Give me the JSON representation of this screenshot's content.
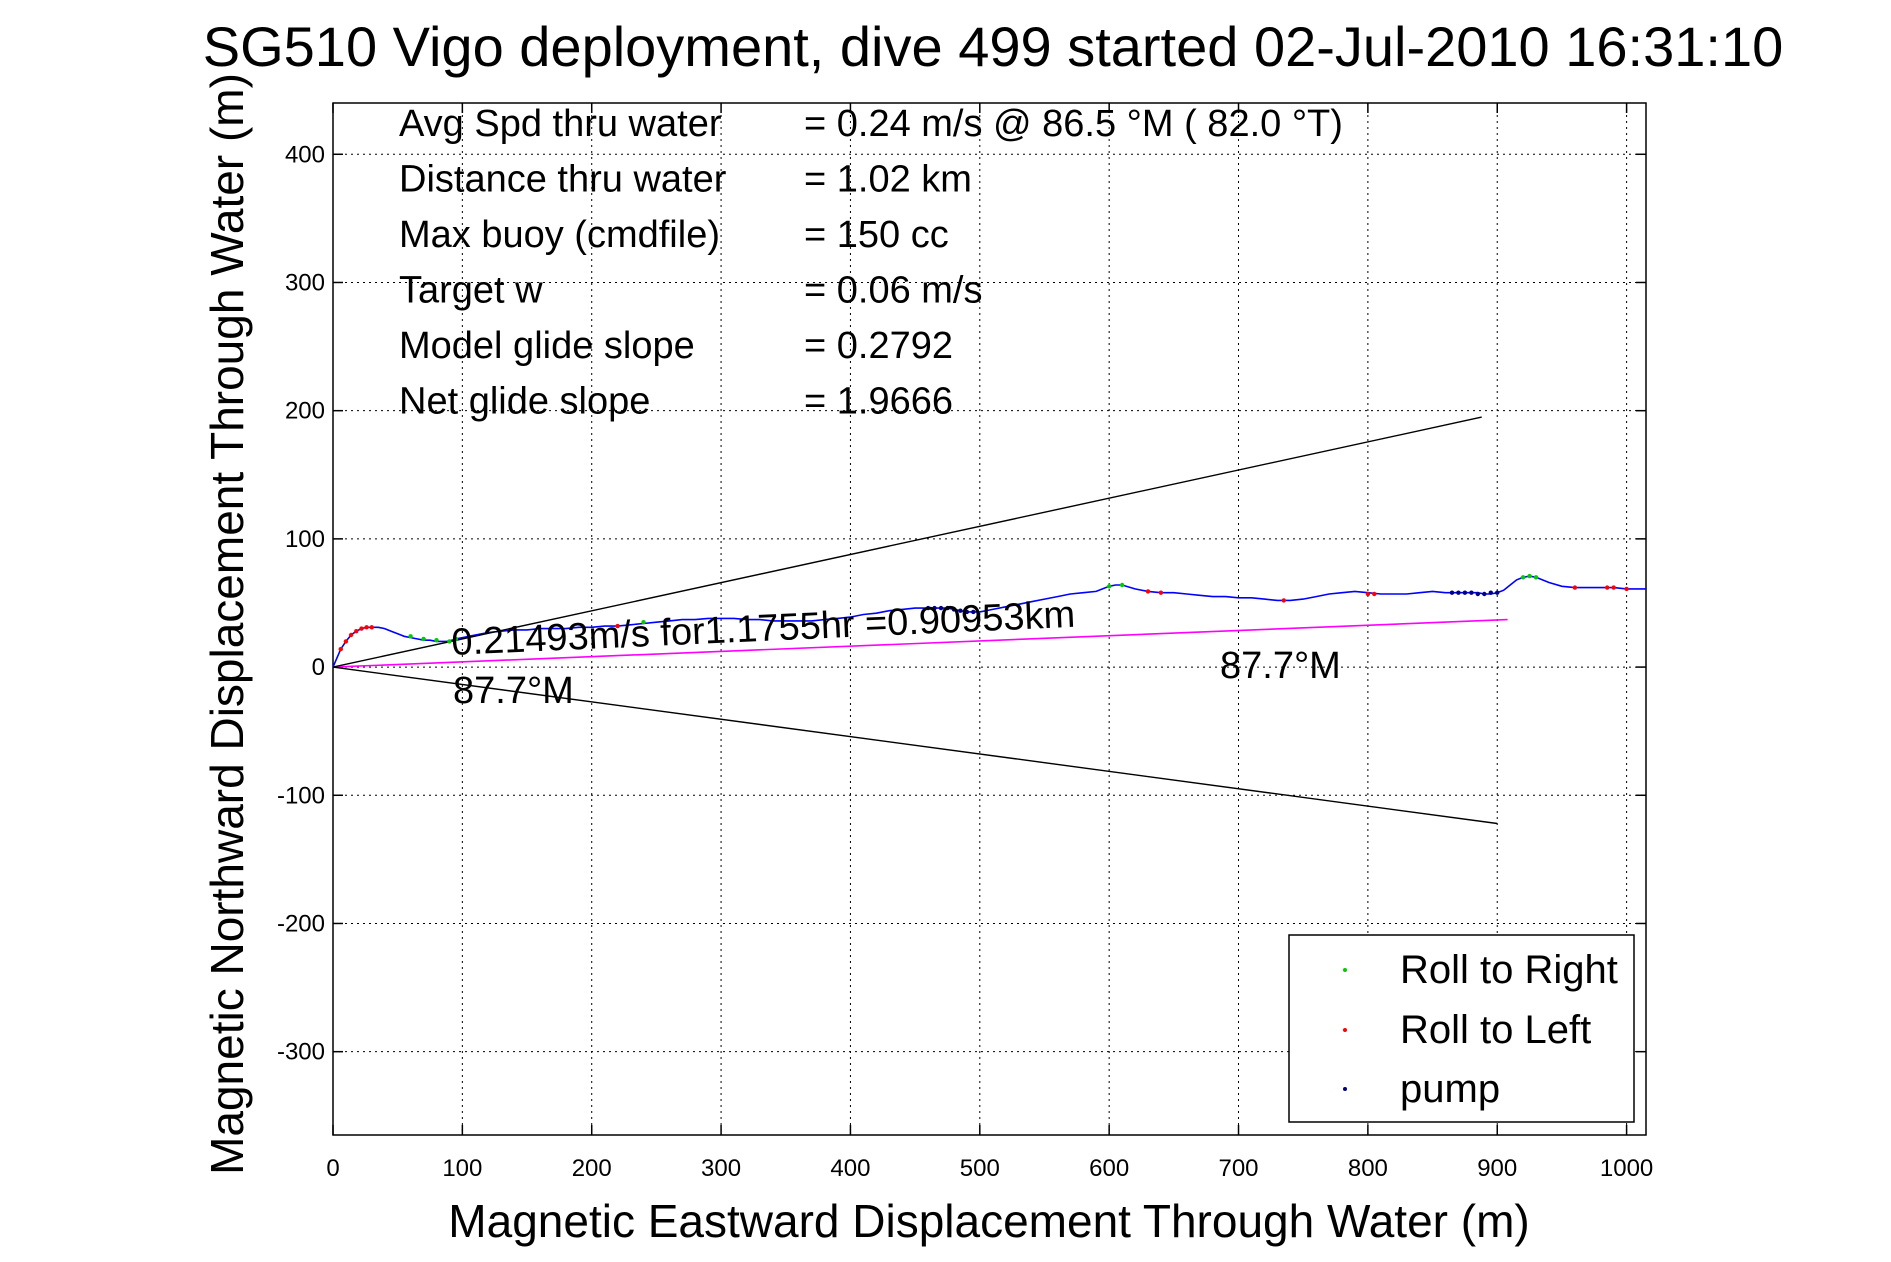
{
  "chart_data": {
    "type": "line",
    "title": "SG510 Vigo deployment, dive 499 started 02-Jul-2010 16:31:10",
    "xlabel": "Magnetic Eastward Displacement Through Water (m)",
    "ylabel": "Magnetic Northward Displacement Through Water (m)",
    "xlim": [
      0,
      1015
    ],
    "ylim": [
      -365,
      440
    ],
    "xticks": [
      0,
      100,
      200,
      300,
      400,
      500,
      600,
      700,
      800,
      900,
      1000
    ],
    "yticks": [
      -300,
      -200,
      -100,
      0,
      100,
      200,
      300,
      400
    ],
    "grid": true,
    "legend_position": "bottom-right",
    "colors": {
      "track": "#0000ff",
      "net_vector": "#ff00ff",
      "cone": "#000000",
      "roll_right": "#00cc00",
      "roll_left": "#ff0000",
      "pump": "#000080"
    },
    "info": [
      {
        "label": "Avg Spd thru water",
        "value": "=  0.24 m/s @  86.5 °M ( 82.0 °T)"
      },
      {
        "label": "Distance thru water",
        "value": "=  1.02 km"
      },
      {
        "label": "Max buoy (cmdfile)",
        "value": "= 150 cc"
      },
      {
        "label": "Target w",
        "value": "= 0.06 m/s"
      },
      {
        "label": "Model glide slope",
        "value": "= 0.2792"
      },
      {
        "label": "Net glide slope",
        "value": "= 1.9666"
      }
    ],
    "annotations": {
      "speed": "0.21493m/s for1.1755hr =0.90953km",
      "heading_near": "87.7°M",
      "heading_far": "87.7°M"
    },
    "series": [
      {
        "name": "track",
        "x": [
          0,
          3,
          6,
          10,
          14,
          18,
          22,
          26,
          30,
          35,
          40,
          45,
          50,
          55,
          60,
          65,
          70,
          75,
          80,
          85,
          88,
          92,
          95,
          100,
          110,
          120,
          130,
          140,
          150,
          160,
          170,
          180,
          190,
          200,
          210,
          220,
          230,
          240,
          250,
          260,
          270,
          280,
          290,
          300,
          310,
          320,
          330,
          340,
          350,
          360,
          370,
          380,
          390,
          400,
          410,
          420,
          430,
          440,
          450,
          460,
          470,
          475,
          480,
          485,
          490,
          495,
          500,
          510,
          520,
          530,
          540,
          550,
          560,
          570,
          580,
          590,
          600,
          605,
          610,
          620,
          630,
          640,
          650,
          660,
          670,
          680,
          690,
          700,
          710,
          720,
          730,
          740,
          750,
          760,
          770,
          780,
          790,
          800,
          810,
          820,
          830,
          840,
          850,
          860,
          870,
          880,
          885,
          890,
          895,
          900,
          905,
          910,
          915,
          920,
          925,
          930,
          940,
          950,
          960,
          970,
          980,
          990,
          1000,
          1015
        ],
        "y": [
          0,
          7,
          14,
          20,
          25,
          28,
          30,
          31,
          31,
          31,
          30,
          28,
          26,
          24,
          23,
          22,
          21,
          21,
          20,
          20,
          20,
          21,
          22,
          23,
          25,
          27,
          28,
          29,
          29,
          30,
          30,
          30,
          31,
          31,
          32,
          32,
          33,
          34,
          35,
          36,
          37,
          37,
          38,
          38,
          38,
          37,
          37,
          36,
          36,
          36,
          36,
          37,
          38,
          39,
          41,
          42,
          44,
          45,
          46,
          46,
          46,
          46,
          45,
          44,
          43,
          43,
          43,
          45,
          47,
          49,
          51,
          53,
          55,
          57,
          58,
          59,
          63,
          64,
          64,
          61,
          59,
          58,
          58,
          57,
          56,
          55,
          55,
          54,
          54,
          53,
          52,
          52,
          53,
          55,
          57,
          58,
          59,
          58,
          57,
          57,
          57,
          58,
          59,
          58,
          58,
          58,
          58,
          57,
          57,
          58,
          60,
          64,
          68,
          70,
          71,
          70,
          66,
          63,
          62,
          62,
          62,
          62,
          61,
          61
        ]
      },
      {
        "name": "net-vector",
        "x": [
          0,
          908
        ],
        "y": [
          0,
          37
        ]
      },
      {
        "name": "cone-upper",
        "x": [
          0,
          888
        ],
        "y": [
          0,
          195
        ]
      },
      {
        "name": "cone-lower",
        "x": [
          0,
          900
        ],
        "y": [
          0,
          -122
        ]
      },
      {
        "name": "Roll to Right",
        "x": [
          60,
          70,
          80,
          90,
          95,
          240,
          600,
          610,
          920,
          925,
          930
        ],
        "y": [
          24,
          22,
          21,
          20,
          22,
          35,
          63,
          64,
          70,
          71,
          70
        ]
      },
      {
        "name": "Roll to Left",
        "x": [
          6,
          10,
          14,
          18,
          22,
          26,
          30,
          220,
          630,
          640,
          735,
          800,
          805,
          960,
          985,
          990,
          1000
        ],
        "y": [
          14,
          20,
          25,
          28,
          30,
          31,
          31,
          32,
          59,
          58,
          52,
          57,
          57,
          62,
          62,
          62,
          61
        ]
      },
      {
        "name": "pump",
        "x": [
          460,
          465,
          470,
          475,
          480,
          485,
          490,
          495,
          865,
          870,
          875,
          880,
          885,
          890,
          895,
          900
        ],
        "y": [
          46,
          46,
          46,
          46,
          45,
          44,
          43,
          43,
          58,
          58,
          58,
          58,
          57,
          57,
          58,
          58
        ]
      }
    ]
  }
}
